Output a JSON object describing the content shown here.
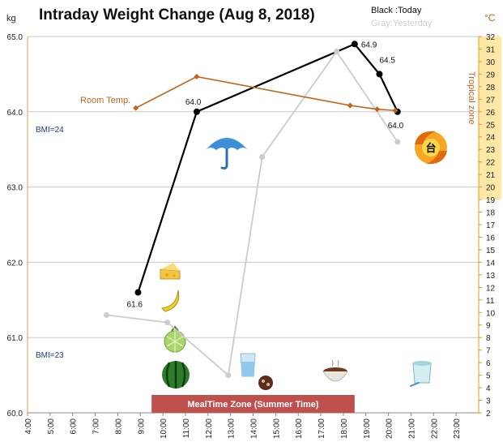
{
  "chart_data": {
    "type": "line",
    "title": "Intraday Weight Change (Aug 8, 2018)",
    "legend": {
      "today": "Black :Today",
      "yesterday": "Gray:Yesterday"
    },
    "y_unit": "kg",
    "y2_unit": "°C",
    "ylim": [
      60.0,
      65.0
    ],
    "y_ticks": [
      "60.0",
      "61.0",
      "62.0",
      "63.0",
      "64.0",
      "65.0"
    ],
    "y2lim": [
      2,
      32
    ],
    "x_ticks": [
      "4:00",
      "5:00",
      "6:00",
      "7:00",
      "8:00",
      "9:00",
      "10:00",
      "11:00",
      "12:00",
      "13:00",
      "14:00",
      "15:00",
      "16:00",
      "17:00",
      "18:00",
      "19:00",
      "20:00",
      "21:00",
      "22:00",
      "23:00"
    ],
    "xlim": [
      4,
      24
    ],
    "series": [
      {
        "name": "Today",
        "color": "#000000",
        "x": [
          8.9,
          11.5,
          18.5,
          19.6,
          20.4
        ],
        "y": [
          61.6,
          64.0,
          64.9,
          64.5,
          64.0
        ],
        "labels": [
          "61.6",
          "64.0",
          "64.9",
          "64.5",
          "64.0"
        ]
      },
      {
        "name": "Yesterday",
        "color": "#cccccc",
        "x": [
          7.5,
          10.2,
          12.9,
          14.4,
          17.7,
          20.4
        ],
        "y": [
          61.3,
          61.2,
          60.5,
          63.4,
          64.8,
          63.6
        ]
      },
      {
        "name": "Room Temp.",
        "color": "#c0651b",
        "axis": "right",
        "x": [
          8.8,
          11.5,
          18.3,
          19.5,
          20.3
        ],
        "y": [
          26.3,
          28.8,
          26.5,
          26.2,
          26.1
        ]
      }
    ],
    "room_label": "Room Temp.",
    "bmi_lines": [
      {
        "label": "BMI=24",
        "y": 64.0
      },
      {
        "label": "BMI=23",
        "y": 61.0
      }
    ],
    "tropical_zone": {
      "label": "Tropical zone",
      "range": [
        19,
        32
      ]
    },
    "meal_zone": {
      "label": "MealTime Zone (Summer Time)",
      "range": [
        9.5,
        18.5
      ]
    },
    "icons": [
      "umbrella-icon",
      "typhoon-icon",
      "cheese-icon",
      "banana-icon",
      "melon-icon",
      "watermelon-icon",
      "water-glass-icon",
      "chocolate-icon",
      "soup-bowl-icon",
      "yogurt-cup-icon"
    ],
    "typhoon_char": "台",
    "colors": {
      "today": "#000000",
      "yesterday": "#cccccc",
      "room": "#c0651b",
      "tropical": "#fde8a8",
      "meal": "#c0504d",
      "right_axis": "#e89a1b"
    }
  }
}
